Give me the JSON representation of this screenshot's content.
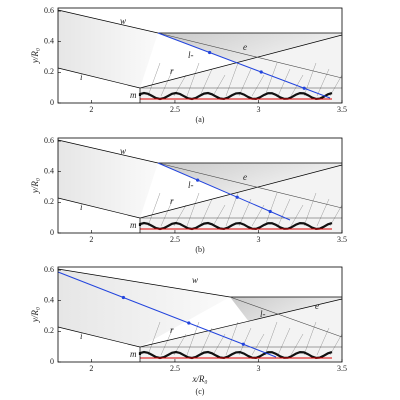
{
  "panels": [
    {
      "caption": "(a)",
      "ylabel": "y/R₀",
      "xlim": [
        1.8,
        3.5
      ],
      "ylim": [
        0,
        0.62
      ],
      "xticks": [
        2,
        2.5,
        3,
        3.5
      ],
      "yticks": [
        0,
        0.2,
        0.4,
        0.6
      ],
      "annotations": [
        "w",
        "e",
        "l-",
        "i",
        "r",
        "m"
      ]
    },
    {
      "caption": "(b)",
      "ylabel": "y/R₀",
      "xlim": [
        1.8,
        3.5
      ],
      "ylim": [
        0,
        0.62
      ],
      "xticks": [
        2,
        2.5,
        3,
        3.5
      ],
      "yticks": [
        0,
        0.2,
        0.4,
        0.6
      ],
      "annotations": [
        "w",
        "e",
        "l-",
        "i",
        "r",
        "m"
      ]
    },
    {
      "caption": "(c)",
      "ylabel": "y/R₀",
      "xlabel": "x/R₀",
      "xlim": [
        1.8,
        3.5
      ],
      "ylim": [
        0,
        0.62
      ],
      "xticks": [
        2,
        2.5,
        3,
        3.5
      ],
      "yticks": [
        0,
        0.2,
        0.4,
        0.6
      ],
      "annotations": [
        "w",
        "e",
        "l-",
        "i",
        "r",
        "m"
      ]
    }
  ]
}
